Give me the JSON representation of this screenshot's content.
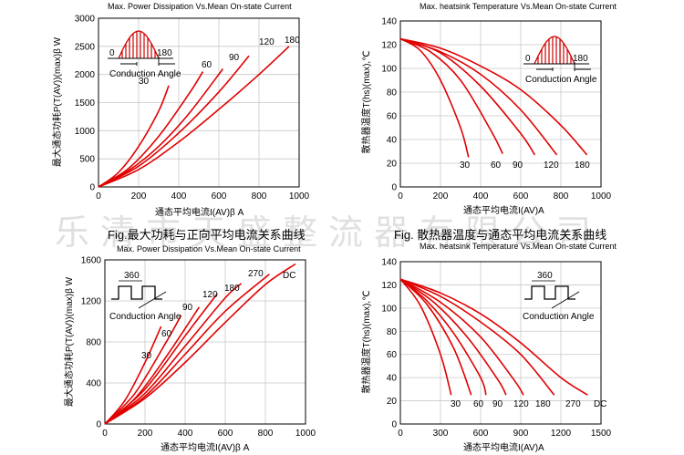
{
  "watermark": "乐清市天盛整流器有限公司",
  "captions": {
    "left": "Fig.最大功耗与正向平均电流关系曲线",
    "right": "Fig. 散热器温度与通态平均电流关系曲线"
  },
  "chart_data": [
    {
      "id": "c1",
      "type": "line",
      "title": "Max. Power Dissipation Vs.Mean On-state Current",
      "xlabel": "通态平均电流I(AV)β  A",
      "ylabel": "最大通态功耗P(T(AV))(max)β  W",
      "xlim": [
        0,
        1000
      ],
      "ylim": [
        0,
        3000
      ],
      "xticks": [
        0,
        200,
        400,
        600,
        800,
        1000
      ],
      "yticks": [
        0,
        500,
        1000,
        1500,
        2000,
        2500,
        3000
      ],
      "inset": {
        "kind": "sine",
        "label": "Conduction Angle",
        "left": "0",
        "right": "180"
      },
      "series": [
        {
          "name": "30",
          "x": [
            0,
            100,
            200,
            300,
            350
          ],
          "y": [
            0,
            260,
            720,
            1350,
            1800
          ]
        },
        {
          "name": "60",
          "x": [
            0,
            150,
            300,
            450,
            520
          ],
          "y": [
            0,
            330,
            900,
            1650,
            2050
          ]
        },
        {
          "name": "90",
          "x": [
            0,
            150,
            300,
            450,
            620
          ],
          "y": [
            0,
            290,
            720,
            1300,
            2100
          ]
        },
        {
          "name": "120",
          "x": [
            0,
            200,
            400,
            600,
            750
          ],
          "y": [
            0,
            370,
            960,
            1690,
            2330
          ]
        },
        {
          "name": "180",
          "x": [
            0,
            200,
            400,
            600,
            800,
            950
          ],
          "y": [
            0,
            310,
            800,
            1380,
            2000,
            2500
          ]
        }
      ]
    },
    {
      "id": "c2",
      "type": "line",
      "title": "Max. heatsink Temperature Vs.Mean On-state Current",
      "xlabel": "通态平均电流I(AV)A",
      "ylabel": "散热器温度T(hs)(max),℃",
      "xlim": [
        0,
        1000
      ],
      "ylim": [
        0,
        140
      ],
      "xticks": [
        0,
        200,
        400,
        600,
        800,
        1000
      ],
      "yticks": [
        0,
        20,
        40,
        60,
        80,
        100,
        120,
        140
      ],
      "inset": {
        "kind": "sine",
        "label": "Conduction Angle",
        "left": "0",
        "right": "180"
      },
      "series": [
        {
          "name": "30",
          "x": [
            0,
            100,
            200,
            300,
            340
          ],
          "y": [
            125,
            115,
            90,
            50,
            25
          ]
        },
        {
          "name": "60",
          "x": [
            0,
            150,
            300,
            450,
            510
          ],
          "y": [
            125,
            114,
            90,
            48,
            28
          ]
        },
        {
          "name": "90",
          "x": [
            0,
            200,
            400,
            600,
            670
          ],
          "y": [
            125,
            113,
            85,
            45,
            27
          ]
        },
        {
          "name": "120",
          "x": [
            0,
            200,
            400,
            600,
            780
          ],
          "y": [
            125,
            114,
            95,
            65,
            27
          ]
        },
        {
          "name": "180",
          "x": [
            0,
            200,
            400,
            600,
            800,
            930
          ],
          "y": [
            125,
            117,
            102,
            82,
            52,
            27
          ]
        }
      ]
    },
    {
      "id": "c3",
      "type": "line",
      "title": "Max. Power Dissipation Vs.Mean On-state Current",
      "xlabel": "通态平均电流I(AV)β  A",
      "ylabel": "最大通态功耗P(T(AV))(max)β  W",
      "xlim": [
        0,
        1000
      ],
      "ylim": [
        0,
        1600
      ],
      "xticks": [
        0,
        200,
        400,
        600,
        800,
        1000
      ],
      "yticks": [
        0,
        400,
        800,
        1200,
        1600
      ],
      "inset": {
        "kind": "square",
        "label": "Conduction Angle",
        "value": "360"
      },
      "series": [
        {
          "name": "30",
          "x": [
            0,
            100,
            200,
            280
          ],
          "y": [
            0,
            230,
            600,
            950
          ]
        },
        {
          "name": "60",
          "x": [
            0,
            150,
            300,
            380
          ],
          "y": [
            0,
            300,
            780,
            1060
          ]
        },
        {
          "name": "90",
          "x": [
            0,
            150,
            300,
            470
          ],
          "y": [
            0,
            250,
            640,
            1140
          ]
        },
        {
          "name": "120",
          "x": [
            0,
            200,
            400,
            560
          ],
          "y": [
            0,
            340,
            860,
            1270
          ]
        },
        {
          "name": "180",
          "x": [
            0,
            200,
            400,
            600,
            680
          ],
          "y": [
            0,
            300,
            760,
            1230,
            1370
          ]
        },
        {
          "name": "270",
          "x": [
            0,
            200,
            400,
            600,
            820
          ],
          "y": [
            0,
            270,
            680,
            1100,
            1460
          ]
        },
        {
          "name": "DC",
          "x": [
            0,
            200,
            400,
            600,
            800,
            950
          ],
          "y": [
            0,
            250,
            600,
            990,
            1360,
            1560
          ]
        }
      ]
    },
    {
      "id": "c4",
      "type": "line",
      "title": "Max. heatsink Temperature Vs.Mean On-state Current",
      "xlabel": "通态平均电流I(AV)A",
      "ylabel": "散热器温度T(hs)(max),℃",
      "xlim": [
        0,
        1500
      ],
      "ylim": [
        0,
        140
      ],
      "xticks": [
        0,
        300,
        600,
        900,
        1200,
        1500
      ],
      "yticks": [
        0,
        20,
        40,
        60,
        80,
        100,
        120,
        140
      ],
      "inset": {
        "kind": "square",
        "label": "Conduction Angle",
        "value": "360"
      },
      "series": [
        {
          "name": "30",
          "x": [
            0,
            150,
            300,
            380
          ],
          "y": [
            125,
            102,
            60,
            25
          ]
        },
        {
          "name": "60",
          "x": [
            0,
            200,
            400,
            530
          ],
          "y": [
            125,
            103,
            65,
            25
          ]
        },
        {
          "name": "90",
          "x": [
            0,
            200,
            400,
            600,
            640
          ],
          "y": [
            125,
            106,
            78,
            40,
            25
          ]
        },
        {
          "name": "120",
          "x": [
            0,
            250,
            500,
            730,
            790
          ],
          "y": [
            125,
            105,
            75,
            38,
            25
          ]
        },
        {
          "name": "180",
          "x": [
            0,
            300,
            600,
            850,
            920
          ],
          "y": [
            125,
            105,
            75,
            38,
            25
          ]
        },
        {
          "name": "270",
          "x": [
            0,
            300,
            600,
            900,
            1150
          ],
          "y": [
            125,
            110,
            88,
            60,
            25
          ]
        },
        {
          "name": "DC",
          "x": [
            0,
            300,
            600,
            900,
            1200,
            1400
          ],
          "y": [
            125,
            113,
            95,
            70,
            40,
            25
          ]
        }
      ]
    }
  ]
}
